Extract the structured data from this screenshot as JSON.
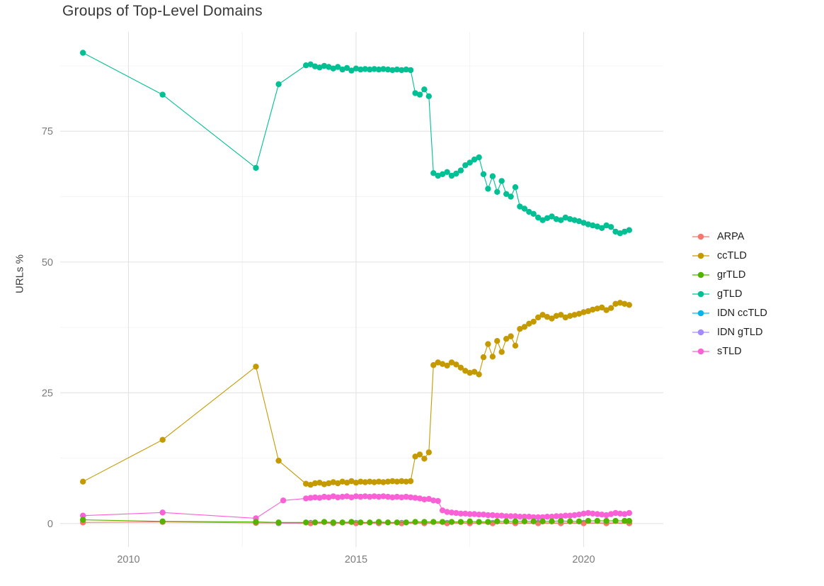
{
  "chart_data": {
    "type": "scatter",
    "title": "Groups of Top-Level Domains",
    "xlabel": "",
    "ylabel": "URLs %",
    "legend_position": "right",
    "grid": true,
    "x_ticks": [
      2010,
      2015,
      2020
    ],
    "x_minor_ticks": [
      2012.5,
      2017.5
    ],
    "y_ticks": [
      0,
      25,
      50,
      75
    ],
    "y_minor_ticks": [
      12.5,
      37.5,
      62.5,
      87.5
    ],
    "x_range": [
      2008.5,
      2021.75
    ],
    "y_range": [
      -4.5,
      94
    ],
    "series": [
      {
        "name": "ARPA",
        "color": "#F8766D",
        "x": [
          2009,
          2010.75,
          2012.8,
          2013.3,
          2014,
          2014.5,
          2015,
          2015.5,
          2016,
          2016.5,
          2017,
          2017.5,
          2018,
          2018.5,
          2019,
          2019.5,
          2020,
          2020.5,
          2021
        ],
        "y": [
          0.2,
          0.3,
          0.1,
          0.1,
          0.05,
          0.05,
          0.05,
          0.05,
          0.05,
          0.05,
          0.05,
          0.05,
          0.05,
          0.05,
          0.05,
          0.05,
          0.05,
          0.05,
          0.05
        ]
      },
      {
        "name": "ccTLD",
        "color": "#C49A00",
        "x": [
          2009,
          2010.75,
          2012.8,
          2013.3,
          2013.9,
          2014,
          2014.1,
          2014.2,
          2014.3,
          2014.4,
          2014.5,
          2014.6,
          2014.7,
          2014.8,
          2014.9,
          2015,
          2015.1,
          2015.2,
          2015.3,
          2015.4,
          2015.5,
          2015.6,
          2015.7,
          2015.8,
          2015.9,
          2016,
          2016.1,
          2016.2,
          2016.3,
          2016.4,
          2016.5,
          2016.6,
          2016.7,
          2016.8,
          2016.9,
          2017,
          2017.1,
          2017.2,
          2017.3,
          2017.4,
          2017.5,
          2017.6,
          2017.7,
          2017.8,
          2017.9,
          2018,
          2018.1,
          2018.2,
          2018.3,
          2018.4,
          2018.5,
          2018.6,
          2018.7,
          2018.8,
          2018.9,
          2019,
          2019.1,
          2019.2,
          2019.3,
          2019.4,
          2019.5,
          2019.6,
          2019.7,
          2019.8,
          2019.9,
          2020,
          2020.1,
          2020.2,
          2020.3,
          2020.4,
          2020.5,
          2020.6,
          2020.7,
          2020.8,
          2020.9,
          2021
        ],
        "y": [
          8,
          16,
          30,
          12,
          7.6,
          7.4,
          7.7,
          7.8,
          7.5,
          7.7,
          7.9,
          7.7,
          8.0,
          7.8,
          8.1,
          7.8,
          8.0,
          7.9,
          8.0,
          7.9,
          8.0,
          7.9,
          8.0,
          8.1,
          8.0,
          8.1,
          8.0,
          8.1,
          12.8,
          13.2,
          12.4,
          13.6,
          30.3,
          30.8,
          30.5,
          30.2,
          30.8,
          30.4,
          29.8,
          29.2,
          28.8,
          29.0,
          28.5,
          31.8,
          34.3,
          31.9,
          34.9,
          32.8,
          35.3,
          35.8,
          34.0,
          37.2,
          37.6,
          38.2,
          38.6,
          39.4,
          39.9,
          39.5,
          39.2,
          39.7,
          39.9,
          39.4,
          39.7,
          39.9,
          40.1,
          40.4,
          40.6,
          40.9,
          41.1,
          41.3,
          40.8,
          41.2,
          42.0,
          42.2,
          42.0,
          41.8
        ]
      },
      {
        "name": "grTLD",
        "color": "#53B400",
        "x": [
          2009,
          2010.75,
          2012.8,
          2013.3,
          2013.9,
          2014.1,
          2014.3,
          2014.5,
          2014.7,
          2014.9,
          2015.1,
          2015.3,
          2015.5,
          2015.7,
          2015.9,
          2016.1,
          2016.3,
          2016.5,
          2016.7,
          2016.9,
          2017.1,
          2017.3,
          2017.5,
          2017.7,
          2017.9,
          2018.1,
          2018.3,
          2018.5,
          2018.7,
          2018.9,
          2019.1,
          2019.3,
          2019.5,
          2019.7,
          2019.9,
          2020.1,
          2020.3,
          2020.5,
          2020.7,
          2020.9,
          2021
        ],
        "y": [
          0.7,
          0.4,
          0.3,
          0.2,
          0.2,
          0.2,
          0.3,
          0.2,
          0.2,
          0.3,
          0.2,
          0.2,
          0.3,
          0.2,
          0.2,
          0.2,
          0.3,
          0.3,
          0.3,
          0.3,
          0.3,
          0.3,
          0.4,
          0.3,
          0.3,
          0.4,
          0.4,
          0.4,
          0.4,
          0.4,
          0.4,
          0.4,
          0.5,
          0.4,
          0.4,
          0.5,
          0.5,
          0.5,
          0.5,
          0.5,
          0.5
        ]
      },
      {
        "name": "gTLD",
        "color": "#00C094",
        "x": [
          2009,
          2010.75,
          2012.8,
          2013.3,
          2013.9,
          2014,
          2014.1,
          2014.2,
          2014.3,
          2014.4,
          2014.5,
          2014.6,
          2014.7,
          2014.8,
          2014.9,
          2015,
          2015.1,
          2015.2,
          2015.3,
          2015.4,
          2015.5,
          2015.6,
          2015.7,
          2015.8,
          2015.9,
          2016,
          2016.1,
          2016.2,
          2016.3,
          2016.4,
          2016.5,
          2016.6,
          2016.7,
          2016.8,
          2016.9,
          2017,
          2017.1,
          2017.2,
          2017.3,
          2017.4,
          2017.5,
          2017.6,
          2017.7,
          2017.8,
          2017.9,
          2018,
          2018.1,
          2018.2,
          2018.3,
          2018.4,
          2018.5,
          2018.6,
          2018.7,
          2018.8,
          2018.9,
          2019,
          2019.1,
          2019.2,
          2019.3,
          2019.4,
          2019.5,
          2019.6,
          2019.7,
          2019.8,
          2019.9,
          2020,
          2020.1,
          2020.2,
          2020.3,
          2020.4,
          2020.5,
          2020.6,
          2020.7,
          2020.8,
          2020.9,
          2021
        ],
        "y": [
          90,
          82,
          68,
          84,
          87.6,
          87.8,
          87.4,
          87.2,
          87.5,
          87.3,
          87.0,
          87.3,
          86.8,
          87.1,
          86.6,
          87.0,
          86.8,
          86.9,
          86.8,
          86.9,
          86.8,
          86.9,
          86.8,
          86.7,
          86.8,
          86.7,
          86.8,
          86.7,
          82.3,
          82.0,
          83.0,
          81.7,
          67.0,
          66.5,
          66.8,
          67.2,
          66.5,
          66.9,
          67.5,
          68.5,
          69.0,
          69.6,
          70.0,
          66.8,
          64.0,
          66.4,
          63.4,
          65.5,
          63.0,
          62.5,
          64.3,
          60.6,
          60.2,
          59.6,
          59.2,
          58.5,
          58.0,
          58.4,
          58.7,
          58.2,
          58.0,
          58.5,
          58.2,
          58.0,
          57.8,
          57.5,
          57.2,
          57.0,
          56.8,
          56.5,
          57.0,
          56.7,
          55.8,
          55.5,
          55.8,
          56.1
        ]
      },
      {
        "name": "IDN ccTLD",
        "color": "#00B6EB",
        "x": [
          2013.3,
          2014,
          2014.5,
          2015,
          2015.5,
          2016,
          2016.5,
          2017,
          2017.5,
          2018,
          2018.5,
          2019,
          2019.5,
          2020,
          2020.5,
          2021
        ],
        "y": [
          0.1,
          0.1,
          0.1,
          0.1,
          0.1,
          0.1,
          0.1,
          0.1,
          0.1,
          0.1,
          0.1,
          0.1,
          0.1,
          0.1,
          0.1,
          0.1
        ]
      },
      {
        "name": "IDN gTLD",
        "color": "#A58AFF",
        "x": [
          2013.3,
          2014,
          2014.5,
          2015,
          2015.5,
          2016,
          2016.5,
          2017,
          2017.5,
          2018,
          2018.5,
          2019,
          2019.5,
          2020,
          2020.5,
          2021
        ],
        "y": [
          0.05,
          0.05,
          0.05,
          0.05,
          0.05,
          0.05,
          0.05,
          0.05,
          0.05,
          0.05,
          0.05,
          0.05,
          0.05,
          0.05,
          0.05,
          0.05
        ]
      },
      {
        "name": "sTLD",
        "color": "#FB61D7",
        "x": [
          2009,
          2010.75,
          2012.8,
          2013.4,
          2013.9,
          2014,
          2014.1,
          2014.2,
          2014.3,
          2014.4,
          2014.5,
          2014.6,
          2014.7,
          2014.8,
          2014.9,
          2015,
          2015.1,
          2015.2,
          2015.3,
          2015.4,
          2015.5,
          2015.6,
          2015.7,
          2015.8,
          2015.9,
          2016,
          2016.1,
          2016.2,
          2016.3,
          2016.4,
          2016.5,
          2016.6,
          2016.7,
          2016.8,
          2016.9,
          2017,
          2017.1,
          2017.2,
          2017.3,
          2017.4,
          2017.5,
          2017.6,
          2017.7,
          2017.8,
          2017.9,
          2018,
          2018.1,
          2018.2,
          2018.3,
          2018.4,
          2018.5,
          2018.6,
          2018.7,
          2018.8,
          2018.9,
          2019,
          2019.1,
          2019.2,
          2019.3,
          2019.4,
          2019.5,
          2019.6,
          2019.7,
          2019.8,
          2019.9,
          2020,
          2020.1,
          2020.2,
          2020.3,
          2020.4,
          2020.5,
          2020.6,
          2020.7,
          2020.8,
          2020.9,
          2021
        ],
        "y": [
          1.5,
          2.1,
          1.0,
          4.4,
          4.8,
          4.9,
          5.0,
          4.9,
          5.1,
          5.0,
          5.2,
          5.0,
          5.1,
          5.2,
          5.0,
          5.2,
          5.1,
          5.2,
          5.1,
          5.2,
          5.1,
          5.2,
          5.1,
          5.0,
          5.1,
          5.0,
          5.1,
          5.0,
          4.9,
          4.8,
          4.6,
          4.7,
          4.4,
          4.3,
          2.5,
          2.2,
          2.1,
          2.0,
          1.9,
          1.9,
          1.8,
          1.8,
          1.7,
          1.7,
          1.6,
          1.6,
          1.5,
          1.5,
          1.4,
          1.4,
          1.4,
          1.3,
          1.3,
          1.3,
          1.2,
          1.2,
          1.2,
          1.3,
          1.3,
          1.4,
          1.4,
          1.5,
          1.5,
          1.6,
          1.7,
          1.9,
          2.0,
          1.9,
          1.8,
          1.7,
          1.6,
          1.8,
          2.0,
          1.9,
          1.8,
          2.0
        ]
      }
    ]
  },
  "style": {
    "background": "#ffffff",
    "grid_major_color": "#e3e3e3",
    "grid_minor_color": "#f0f0f0",
    "tick_label_color": "#7b7b7b",
    "title_color": "#383838"
  }
}
